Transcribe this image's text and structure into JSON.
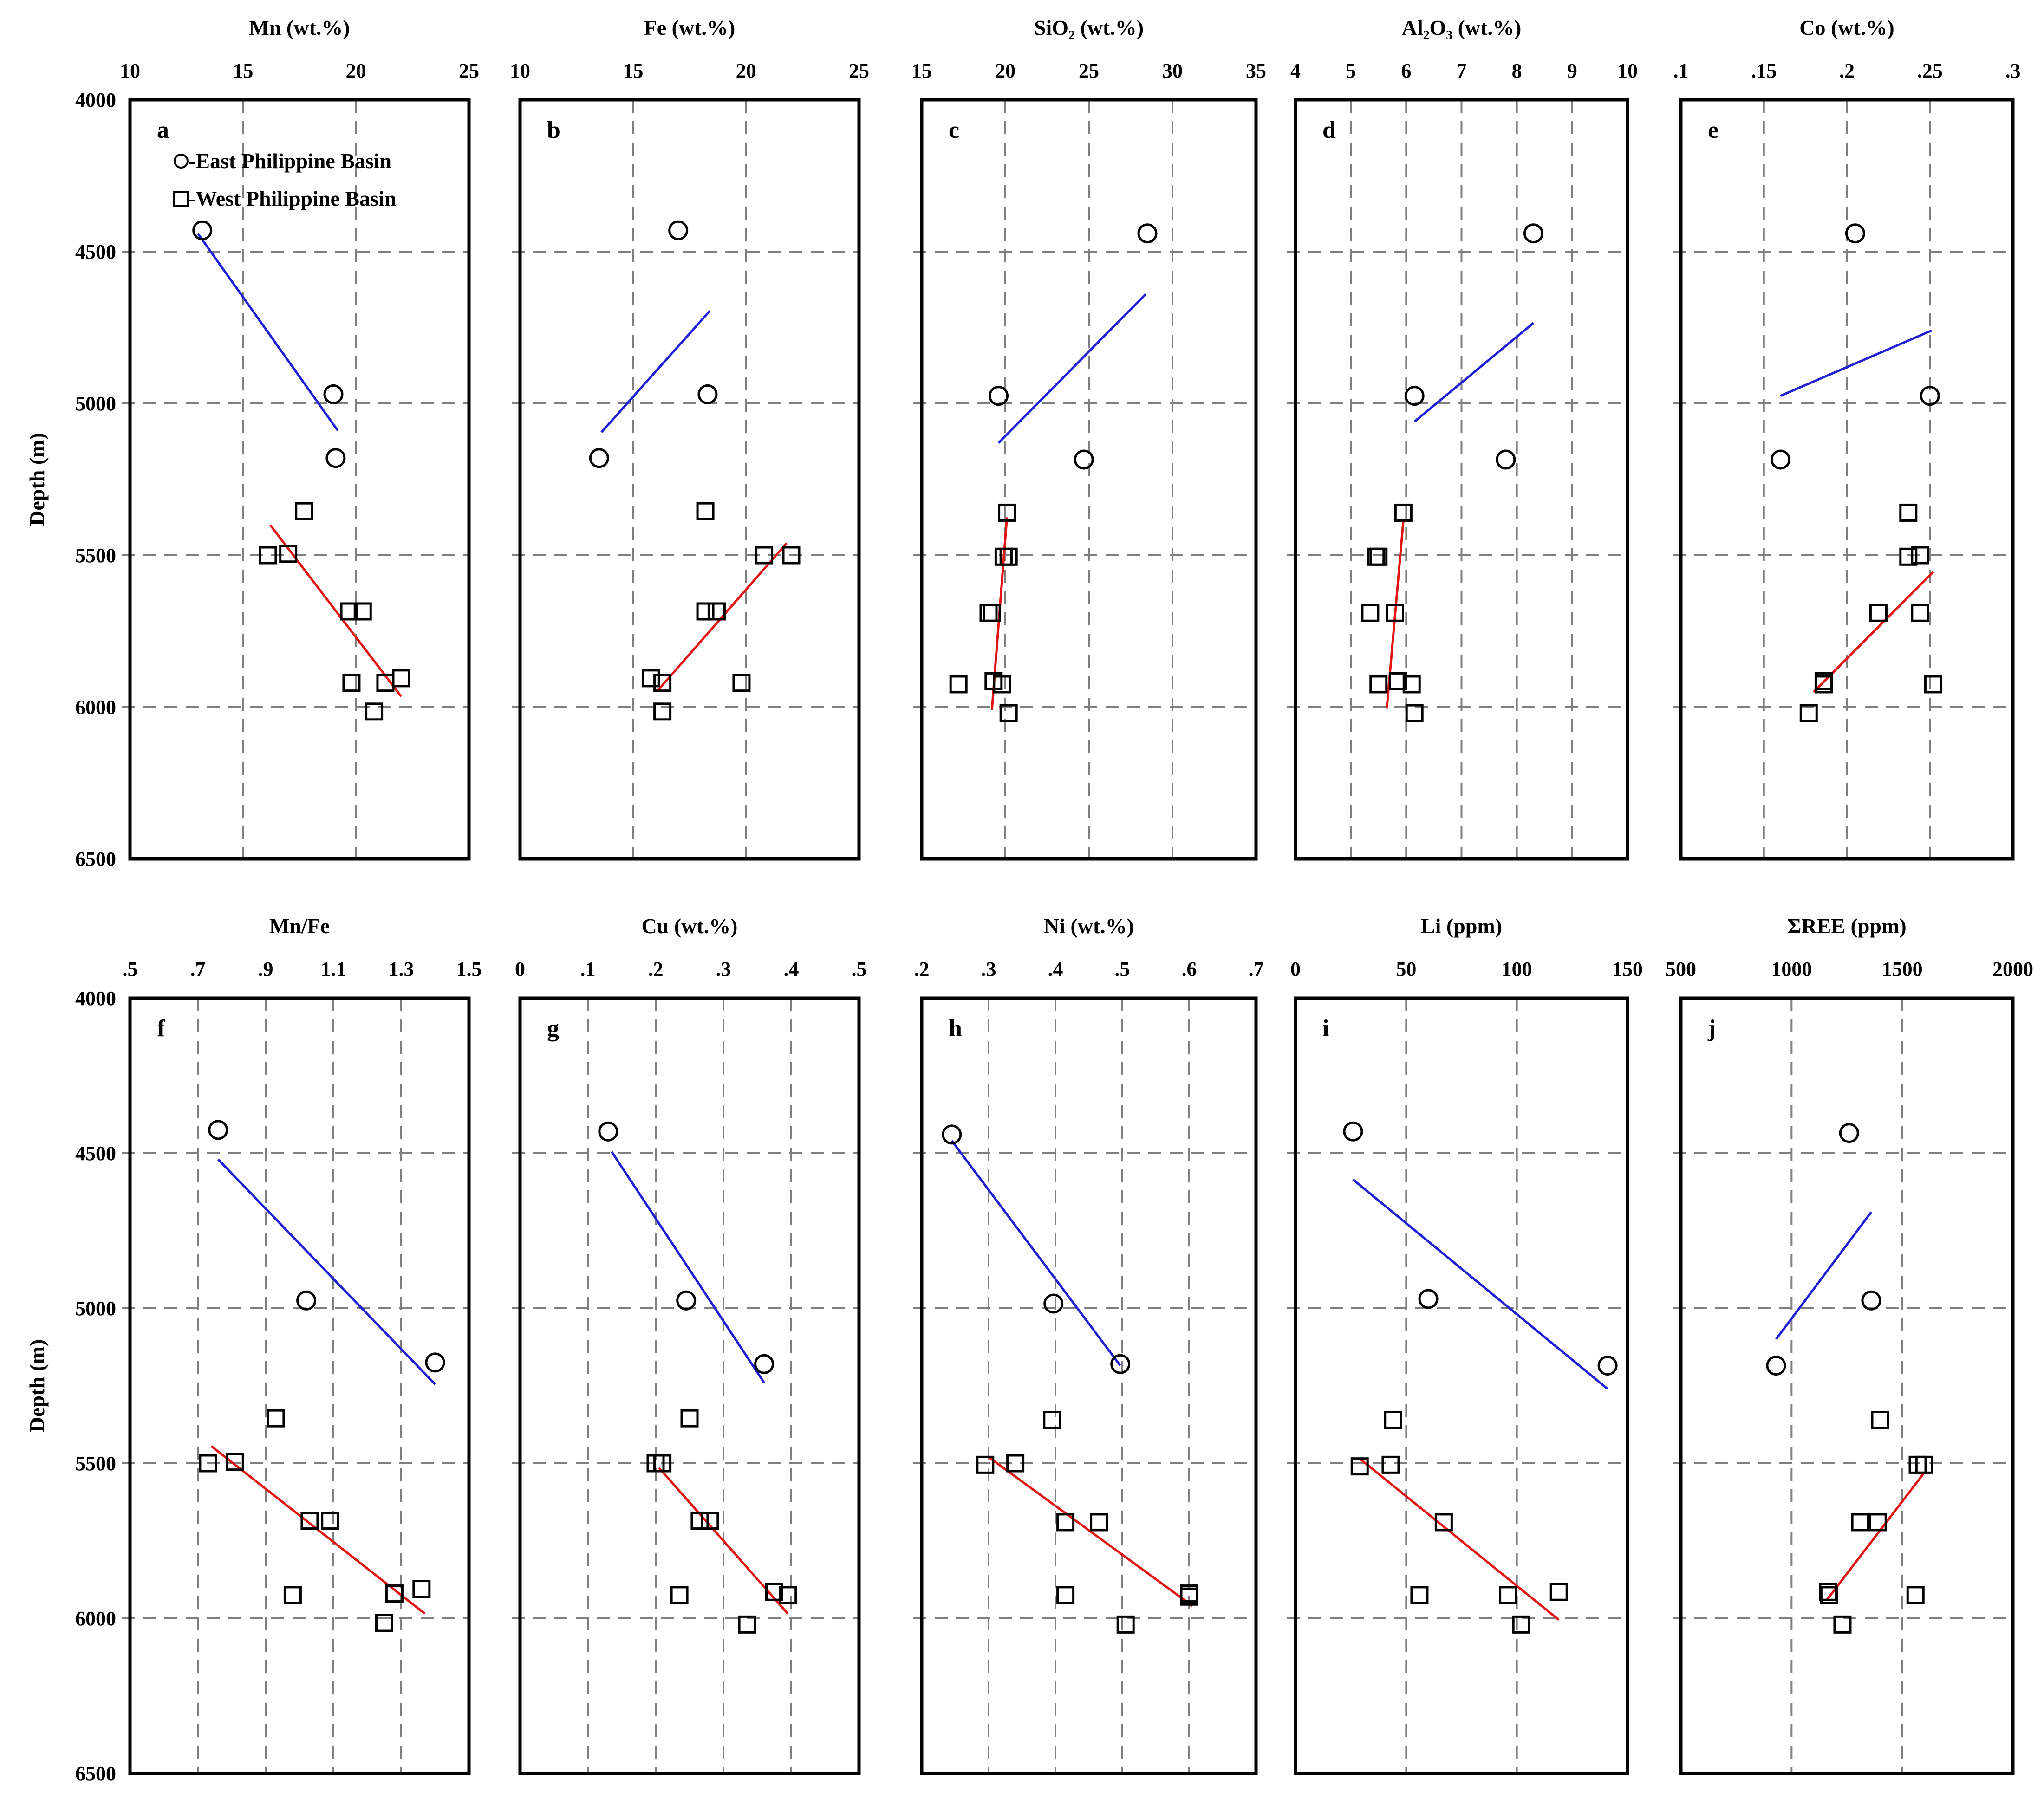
{
  "figure": {
    "ylabel": "Depth (m)",
    "legend": {
      "east_label": "-East Philippine Basin",
      "west_label": "-West Philippine Basin"
    },
    "colors": {
      "east_fit": "#1f1fd6",
      "west_fit": "#e21414",
      "grid": "#7f7f7f",
      "frame": "#000000"
    }
  },
  "chart_data": [
    {
      "id": "a",
      "type": "scatter",
      "title": "Mn (wt.%)",
      "xlim": [
        10,
        25
      ],
      "xticks": [
        10,
        15,
        20,
        25
      ],
      "ylim": [
        4000,
        6500
      ],
      "yticks": [
        4000,
        4500,
        5000,
        5500,
        6000,
        6500
      ],
      "east": [
        [
          13.2,
          4430
        ],
        [
          19.0,
          4970
        ],
        [
          19.1,
          5180
        ]
      ],
      "west": [
        [
          17.7,
          5355
        ],
        [
          16.1,
          5500
        ],
        [
          17.0,
          5495
        ],
        [
          19.7,
          5685
        ],
        [
          20.3,
          5685
        ],
        [
          19.8,
          5920
        ],
        [
          21.3,
          5920
        ],
        [
          22.0,
          5905
        ],
        [
          20.8,
          6015
        ]
      ],
      "east_fit": [
        [
          13.0,
          4440
        ],
        [
          19.2,
          5090
        ]
      ],
      "west_fit": [
        [
          16.2,
          5400
        ],
        [
          22.0,
          5965
        ]
      ]
    },
    {
      "id": "b",
      "type": "scatter",
      "title": "Fe (wt.%)",
      "xlim": [
        10,
        25
      ],
      "xticks": [
        10,
        15,
        20,
        25
      ],
      "ylim": [
        4000,
        6500
      ],
      "yticks": [
        4000,
        4500,
        5000,
        5500,
        6000,
        6500
      ],
      "east": [
        [
          17.0,
          4430
        ],
        [
          18.3,
          4970
        ],
        [
          13.5,
          5180
        ]
      ],
      "west": [
        [
          18.2,
          5355
        ],
        [
          20.8,
          5500
        ],
        [
          22.0,
          5500
        ],
        [
          18.2,
          5685
        ],
        [
          18.7,
          5685
        ],
        [
          15.8,
          5905
        ],
        [
          16.3,
          5920
        ],
        [
          19.8,
          5920
        ],
        [
          16.3,
          6015
        ]
      ],
      "east_fit": [
        [
          13.6,
          5095
        ],
        [
          18.4,
          4695
        ]
      ],
      "west_fit": [
        [
          16.1,
          5945
        ],
        [
          21.8,
          5460
        ]
      ]
    },
    {
      "id": "c",
      "type": "scatter",
      "title": "SiO₂ (wt.%)",
      "xlim": [
        15,
        35
      ],
      "xticks": [
        15,
        20,
        25,
        30,
        35
      ],
      "ylim": [
        4000,
        6500
      ],
      "yticks": [
        4000,
        4500,
        5000,
        5500,
        6000,
        6500
      ],
      "east": [
        [
          28.5,
          4440
        ],
        [
          19.6,
          4975
        ],
        [
          24.7,
          5185
        ]
      ],
      "west": [
        [
          20.1,
          5360
        ],
        [
          19.9,
          5505
        ],
        [
          20.2,
          5505
        ],
        [
          19.2,
          5690
        ],
        [
          19.0,
          5690
        ],
        [
          17.2,
          5925
        ],
        [
          19.3,
          5915
        ],
        [
          19.8,
          5925
        ],
        [
          20.2,
          6020
        ]
      ],
      "east_fit": [
        [
          19.6,
          5130
        ],
        [
          28.4,
          4640
        ]
      ],
      "west_fit": [
        [
          19.2,
          6010
        ],
        [
          20.1,
          5375
        ]
      ]
    },
    {
      "id": "d",
      "type": "scatter",
      "title": "Al₂O₃  (wt.%)",
      "xlim": [
        4,
        10
      ],
      "xticks": [
        4,
        5,
        6,
        7,
        8,
        9,
        10
      ],
      "ylim": [
        4000,
        6500
      ],
      "yticks": [
        4000,
        4500,
        5000,
        5500,
        6000,
        6500
      ],
      "east": [
        [
          8.3,
          4440
        ],
        [
          6.15,
          4975
        ],
        [
          7.8,
          5185
        ]
      ],
      "west": [
        [
          5.95,
          5360
        ],
        [
          5.45,
          5505
        ],
        [
          5.5,
          5505
        ],
        [
          5.35,
          5690
        ],
        [
          5.8,
          5690
        ],
        [
          5.5,
          5925
        ],
        [
          5.85,
          5915
        ],
        [
          6.1,
          5925
        ],
        [
          6.15,
          6020
        ]
      ],
      "east_fit": [
        [
          6.15,
          5060
        ],
        [
          8.3,
          4735
        ]
      ],
      "west_fit": [
        [
          5.65,
          6005
        ],
        [
          5.95,
          5385
        ]
      ]
    },
    {
      "id": "e",
      "type": "scatter",
      "title": "Co  (wt.%)",
      "xlim": [
        0.1,
        0.3
      ],
      "xticks": [
        0.1,
        0.15,
        0.2,
        0.25,
        0.3
      ],
      "ylim": [
        4000,
        6500
      ],
      "yticks": [
        4000,
        4500,
        5000,
        5500,
        6000,
        6500
      ],
      "east": [
        [
          0.205,
          4440
        ],
        [
          0.25,
          4975
        ],
        [
          0.16,
          5185
        ]
      ],
      "west": [
        [
          0.237,
          5360
        ],
        [
          0.237,
          5505
        ],
        [
          0.244,
          5500
        ],
        [
          0.219,
          5690
        ],
        [
          0.244,
          5690
        ],
        [
          0.186,
          5915
        ],
        [
          0.186,
          5925
        ],
        [
          0.252,
          5925
        ],
        [
          0.177,
          6020
        ]
      ],
      "east_fit": [
        [
          0.16,
          4975
        ],
        [
          0.251,
          4760
        ]
      ],
      "west_fit": [
        [
          0.18,
          5950
        ],
        [
          0.252,
          5555
        ]
      ]
    },
    {
      "id": "f",
      "type": "scatter",
      "title": "Mn/Fe",
      "xlim": [
        0.5,
        1.5
      ],
      "xticks": [
        0.5,
        0.7,
        0.9,
        1.1,
        1.3,
        1.5
      ],
      "ylim": [
        4000,
        6500
      ],
      "yticks": [
        4000,
        4500,
        5000,
        5500,
        6000,
        6500
      ],
      "east": [
        [
          0.76,
          4425
        ],
        [
          1.02,
          4975
        ],
        [
          1.4,
          5175
        ]
      ],
      "west": [
        [
          0.93,
          5355
        ],
        [
          0.73,
          5500
        ],
        [
          0.81,
          5495
        ],
        [
          1.03,
          5685
        ],
        [
          1.09,
          5685
        ],
        [
          0.98,
          5925
        ],
        [
          1.28,
          5920
        ],
        [
          1.36,
          5905
        ],
        [
          1.25,
          6015
        ]
      ],
      "east_fit": [
        [
          0.76,
          4520
        ],
        [
          1.4,
          5245
        ]
      ],
      "west_fit": [
        [
          0.74,
          5445
        ],
        [
          1.37,
          5985
        ]
      ]
    },
    {
      "id": "g",
      "type": "scatter",
      "title": "Cu  (wt.%)",
      "xlim": [
        0,
        0.5
      ],
      "xticks": [
        0,
        0.1,
        0.2,
        0.3,
        0.4,
        0.5
      ],
      "ylim": [
        4000,
        6500
      ],
      "yticks": [
        4000,
        4500,
        5000,
        5500,
        6000,
        6500
      ],
      "east": [
        [
          0.13,
          4430
        ],
        [
          0.245,
          4975
        ],
        [
          0.36,
          5180
        ]
      ],
      "west": [
        [
          0.25,
          5355
        ],
        [
          0.2,
          5500
        ],
        [
          0.21,
          5500
        ],
        [
          0.265,
          5685
        ],
        [
          0.28,
          5685
        ],
        [
          0.235,
          5925
        ],
        [
          0.375,
          5915
        ],
        [
          0.395,
          5925
        ],
        [
          0.335,
          6020
        ]
      ],
      "east_fit": [
        [
          0.135,
          4495
        ],
        [
          0.36,
          5240
        ]
      ],
      "west_fit": [
        [
          0.205,
          5515
        ],
        [
          0.395,
          5985
        ]
      ]
    },
    {
      "id": "h",
      "type": "scatter",
      "title": "Ni  (wt.%)",
      "xlim": [
        0.2,
        0.7
      ],
      "xticks": [
        0.2,
        0.3,
        0.4,
        0.5,
        0.6,
        0.7
      ],
      "ylim": [
        4000,
        6500
      ],
      "yticks": [
        4000,
        4500,
        5000,
        5500,
        6000,
        6500
      ],
      "east": [
        [
          0.245,
          4440
        ],
        [
          0.397,
          4985
        ],
        [
          0.497,
          5180
        ]
      ],
      "west": [
        [
          0.395,
          5360
        ],
        [
          0.295,
          5505
        ],
        [
          0.34,
          5500
        ],
        [
          0.415,
          5690
        ],
        [
          0.465,
          5690
        ],
        [
          0.415,
          5925
        ],
        [
          0.505,
          6020
        ],
        [
          0.6,
          5920
        ],
        [
          0.6,
          5930
        ]
      ],
      "east_fit": [
        [
          0.245,
          4460
        ],
        [
          0.497,
          5185
        ]
      ],
      "west_fit": [
        [
          0.3,
          5480
        ],
        [
          0.605,
          5960
        ]
      ]
    },
    {
      "id": "i",
      "type": "scatter",
      "title": "Li (ppm)",
      "xlim": [
        0,
        150
      ],
      "xticks": [
        0,
        50,
        100,
        150
      ],
      "ylim": [
        4000,
        6500
      ],
      "yticks": [
        4000,
        4500,
        5000,
        5500,
        6000,
        6500
      ],
      "east": [
        [
          26,
          4430
        ],
        [
          60,
          4970
        ],
        [
          141,
          5185
        ]
      ],
      "west": [
        [
          44,
          5360
        ],
        [
          29,
          5510
        ],
        [
          43,
          5505
        ],
        [
          67,
          5690
        ],
        [
          56,
          5925
        ],
        [
          96,
          5925
        ],
        [
          119,
          5915
        ],
        [
          102,
          6020
        ]
      ],
      "east_fit": [
        [
          26,
          4585
        ],
        [
          141,
          5260
        ]
      ],
      "west_fit": [
        [
          29,
          5485
        ],
        [
          119,
          6005
        ]
      ]
    },
    {
      "id": "j",
      "type": "scatter",
      "title": "ΣREE (ppm)",
      "xlim": [
        500,
        2000
      ],
      "xticks": [
        500,
        1000,
        1500,
        2000
      ],
      "ylim": [
        4000,
        6500
      ],
      "yticks": [
        4000,
        4500,
        5000,
        5500,
        6000,
        6500
      ],
      "east": [
        [
          1260,
          4435
        ],
        [
          1360,
          4975
        ],
        [
          930,
          5185
        ]
      ],
      "west": [
        [
          1400,
          5360
        ],
        [
          1570,
          5505
        ],
        [
          1600,
          5505
        ],
        [
          1310,
          5690
        ],
        [
          1390,
          5690
        ],
        [
          1170,
          5925
        ],
        [
          1165,
          5915
        ],
        [
          1560,
          5925
        ],
        [
          1230,
          6020
        ]
      ],
      "east_fit": [
        [
          930,
          5100
        ],
        [
          1360,
          4690
        ]
      ],
      "west_fit": [
        [
          1160,
          5940
        ],
        [
          1600,
          5530
        ]
      ]
    }
  ]
}
